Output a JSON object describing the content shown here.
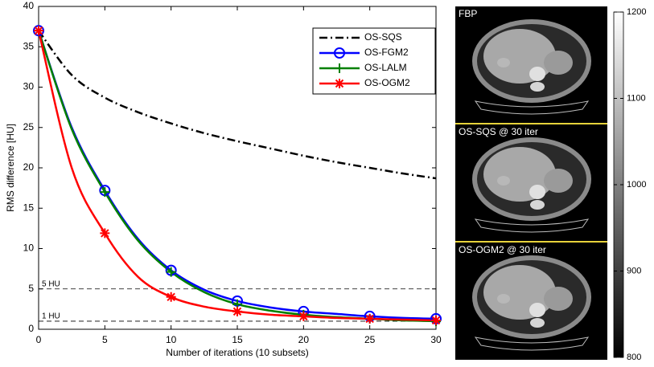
{
  "chart_data": {
    "type": "line",
    "xlabel": "Number of iterations (10 subsets)",
    "ylabel": "RMS difference [HU]",
    "x": [
      0,
      2.5,
      5,
      7.5,
      10,
      12.5,
      15,
      17.5,
      20,
      22.5,
      25,
      27.5,
      30
    ],
    "xlim": [
      0,
      30
    ],
    "xticks": [
      0,
      5,
      10,
      15,
      20,
      25,
      30
    ],
    "ylim": [
      0,
      40
    ],
    "yticks": [
      0,
      5,
      10,
      15,
      20,
      25,
      30,
      35,
      40
    ],
    "legend": "upper right",
    "series": [
      {
        "name": "OS-SQS",
        "color": "#000000",
        "dash": "dashdot",
        "values": [
          37,
          31.5,
          28.7,
          26.9,
          25.5,
          24.3,
          23.3,
          22.4,
          21.5,
          20.7,
          20.0,
          19.3,
          18.7
        ]
      },
      {
        "name": "OS-FGM2",
        "color": "#0000ff",
        "marker": "o",
        "markevery": 2,
        "values": [
          37,
          25,
          17.2,
          11.2,
          7.3,
          4.9,
          3.5,
          2.7,
          2.2,
          1.9,
          1.6,
          1.4,
          1.3
        ]
      },
      {
        "name": "OS-LALM",
        "color": "#008000",
        "marker": "+",
        "markevery": 2,
        "values": [
          37,
          24.8,
          17,
          11,
          7.1,
          4.6,
          3.1,
          2.3,
          1.8,
          1.5,
          1.3,
          1.1,
          1.0
        ]
      },
      {
        "name": "OS-OGM2",
        "color": "#ff0000",
        "marker": "*",
        "markevery": 2,
        "values": [
          37,
          20,
          11.9,
          6.5,
          4.0,
          2.8,
          2.2,
          1.8,
          1.6,
          1.4,
          1.3,
          1.2,
          1.1
        ]
      }
    ],
    "ref_lines": [
      {
        "value": 5,
        "label": "5 HU"
      },
      {
        "value": 1,
        "label": "1 HU"
      }
    ],
    "images": [
      "FBP",
      "OS-SQS @ 30 iter",
      "OS-OGM2 @ 30 iter"
    ],
    "colorbar": {
      "lim": [
        800,
        1200
      ],
      "ticks": [
        800,
        900,
        1000,
        1100,
        1200
      ]
    }
  }
}
